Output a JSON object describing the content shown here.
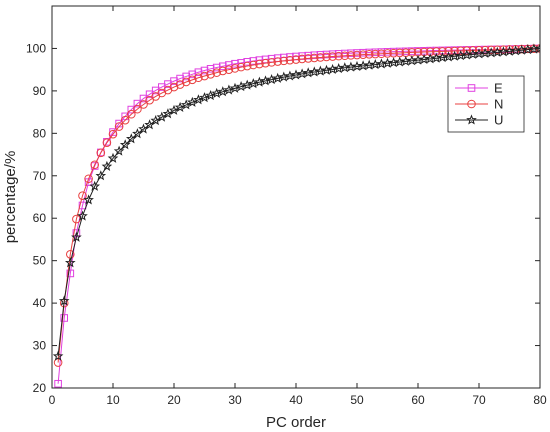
{
  "chart_data": {
    "type": "line",
    "xlabel": "PC order",
    "ylabel": "percentage/%",
    "xlim": [
      0,
      80
    ],
    "ylim": [
      20,
      110
    ],
    "xticks": [
      0,
      10,
      20,
      30,
      40,
      50,
      60,
      70,
      80
    ],
    "yticks": [
      20,
      30,
      40,
      50,
      60,
      70,
      80,
      90,
      100
    ],
    "grid": false,
    "legend_position": "upper-right",
    "x": [
      1,
      2,
      3,
      4,
      5,
      6,
      7,
      8,
      9,
      10,
      11,
      12,
      13,
      14,
      15,
      16,
      17,
      18,
      19,
      20,
      21,
      22,
      23,
      24,
      25,
      26,
      27,
      28,
      29,
      30,
      31,
      32,
      33,
      34,
      35,
      36,
      37,
      38,
      39,
      40,
      41,
      42,
      43,
      44,
      45,
      46,
      47,
      48,
      49,
      50,
      51,
      52,
      53,
      54,
      55,
      56,
      57,
      58,
      59,
      60,
      61,
      62,
      63,
      64,
      65,
      66,
      67,
      68,
      69,
      70,
      71,
      72,
      73,
      74,
      75,
      76,
      77,
      78,
      79,
      80
    ],
    "series": [
      {
        "name": "E",
        "color": "#e040e0",
        "marker": "square",
        "values": [
          21.0,
          36.5,
          47.0,
          56.5,
          63.0,
          68.5,
          72.3,
          75.5,
          78.0,
          80.3,
          82.3,
          84.0,
          85.6,
          87.0,
          88.2,
          89.2,
          90.1,
          90.9,
          91.6,
          92.3,
          92.9,
          93.4,
          93.9,
          94.4,
          94.8,
          95.2,
          95.5,
          95.8,
          96.1,
          96.4,
          96.6,
          96.85,
          97.05,
          97.25,
          97.42,
          97.58,
          97.72,
          97.86,
          97.98,
          98.1,
          98.2,
          98.3,
          98.4,
          98.49,
          98.57,
          98.65,
          98.73,
          98.8,
          98.87,
          98.93,
          98.99,
          99.05,
          99.1,
          99.15,
          99.2,
          99.25,
          99.29,
          99.33,
          99.37,
          99.41,
          99.44,
          99.48,
          99.51,
          99.54,
          99.57,
          99.6,
          99.63,
          99.66,
          99.68,
          99.71,
          99.73,
          99.76,
          99.78,
          99.8,
          99.83,
          99.86,
          99.89,
          99.92,
          99.96,
          100.0
        ]
      },
      {
        "name": "N",
        "color": "#e84040",
        "marker": "circle",
        "values": [
          26.0,
          40.0,
          51.5,
          59.8,
          65.3,
          69.3,
          72.6,
          75.4,
          77.8,
          79.8,
          81.6,
          83.1,
          84.5,
          85.7,
          86.8,
          87.8,
          88.7,
          89.5,
          90.2,
          90.9,
          91.5,
          92.1,
          92.6,
          93.1,
          93.5,
          93.9,
          94.3,
          94.7,
          95.0,
          95.3,
          95.6,
          95.85,
          96.1,
          96.32,
          96.53,
          96.72,
          96.9,
          97.07,
          97.23,
          97.38,
          97.52,
          97.65,
          97.77,
          97.88,
          97.99,
          98.09,
          98.19,
          98.28,
          98.37,
          98.45,
          98.53,
          98.61,
          98.68,
          98.75,
          98.82,
          98.88,
          98.94,
          99.0,
          99.06,
          99.11,
          99.16,
          99.21,
          99.26,
          99.31,
          99.35,
          99.4,
          99.44,
          99.48,
          99.52,
          99.56,
          99.6,
          99.64,
          99.68,
          99.72,
          99.76,
          99.8,
          99.85,
          99.9,
          99.95,
          100.0
        ]
      },
      {
        "name": "U",
        "color": "#202020",
        "marker": "star",
        "values": [
          27.5,
          40.5,
          49.5,
          55.5,
          60.5,
          64.3,
          67.5,
          70.0,
          72.2,
          74.1,
          75.8,
          77.3,
          78.7,
          79.9,
          81.0,
          82.0,
          83.0,
          83.8,
          84.6,
          85.4,
          86.1,
          86.7,
          87.3,
          87.9,
          88.4,
          88.9,
          89.4,
          89.8,
          90.2,
          90.6,
          91.0,
          91.35,
          91.7,
          92.05,
          92.35,
          92.65,
          92.95,
          93.25,
          93.5,
          93.75,
          94.0,
          94.25,
          94.45,
          94.65,
          94.85,
          95.05,
          95.25,
          95.45,
          95.6,
          95.75,
          95.9,
          96.05,
          96.2,
          96.35,
          96.5,
          96.65,
          96.8,
          96.95,
          97.1,
          97.25,
          97.4,
          97.55,
          97.7,
          97.85,
          98.0,
          98.15,
          98.3,
          98.45,
          98.6,
          98.73,
          98.85,
          98.97,
          99.08,
          99.2,
          99.32,
          99.45,
          99.58,
          99.72,
          99.86,
          100.0
        ]
      }
    ]
  }
}
